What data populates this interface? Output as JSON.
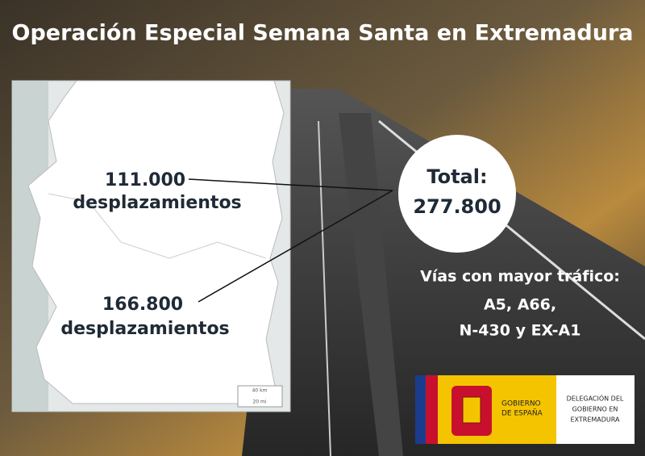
{
  "title": "Operación Especial Semana Santa en Extremadura",
  "map": {
    "regions": [
      {
        "value": "111.000",
        "label": "desplazamientos"
      },
      {
        "value": "166.800",
        "label": "desplazamientos"
      }
    ],
    "scale": [
      "40 km",
      "20 mi"
    ]
  },
  "total": {
    "label": "Total:",
    "value": "277.800"
  },
  "roads": {
    "heading": "Vías con mayor tráfico:",
    "lines": [
      "A5, A66,",
      "N-430 y EX-A1"
    ]
  },
  "logo": {
    "government": [
      "GOBIERNO",
      "DE ESPAÑA"
    ],
    "delegation": [
      "DELEGACIÓN DEL",
      "GOBIERNO EN",
      "EXTREMADURA"
    ]
  }
}
